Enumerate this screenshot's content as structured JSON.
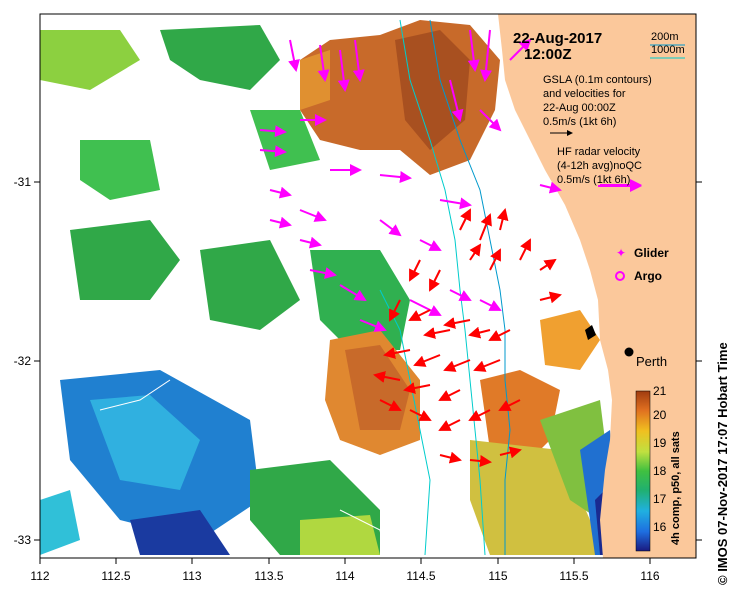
{
  "map": {
    "date_line": "22-Aug-2017",
    "time_line": "12:00Z",
    "scale_depth_a": "200m",
    "scale_depth_b": "1000m",
    "gsla_note": [
      "GSLA (0.1m contours)",
      "and velocities for",
      "22-Aug 00:00Z",
      "0.5m/s (1kt 6h)"
    ],
    "hf_note": [
      "HF radar velocity",
      "(4-12h avg)noQC",
      "0.5m/s (1kt 6h)"
    ],
    "legend_glider": "Glider",
    "legend_argo": "Argo",
    "city": "Perth",
    "colorbar_title": "4h comp, p50, all sats",
    "colorbar_ticks": [
      "16",
      "17",
      "18",
      "19",
      "20",
      "21"
    ],
    "x_ticks": [
      "112",
      "112.5",
      "113",
      "113.5",
      "114",
      "114.5",
      "115",
      "115.5",
      "116"
    ],
    "y_ticks": [
      "-31",
      "-32",
      "-33"
    ],
    "credit": "© IMOS 07-Nov-2017 17:07 Hobart Time",
    "colors": {
      "land": "#fbc89b",
      "hf_vector": "#ff0000",
      "gsla_vector": "#ff00ff",
      "contour_200m": "#0099cc",
      "contour_1000m": "#00cccc"
    }
  }
}
